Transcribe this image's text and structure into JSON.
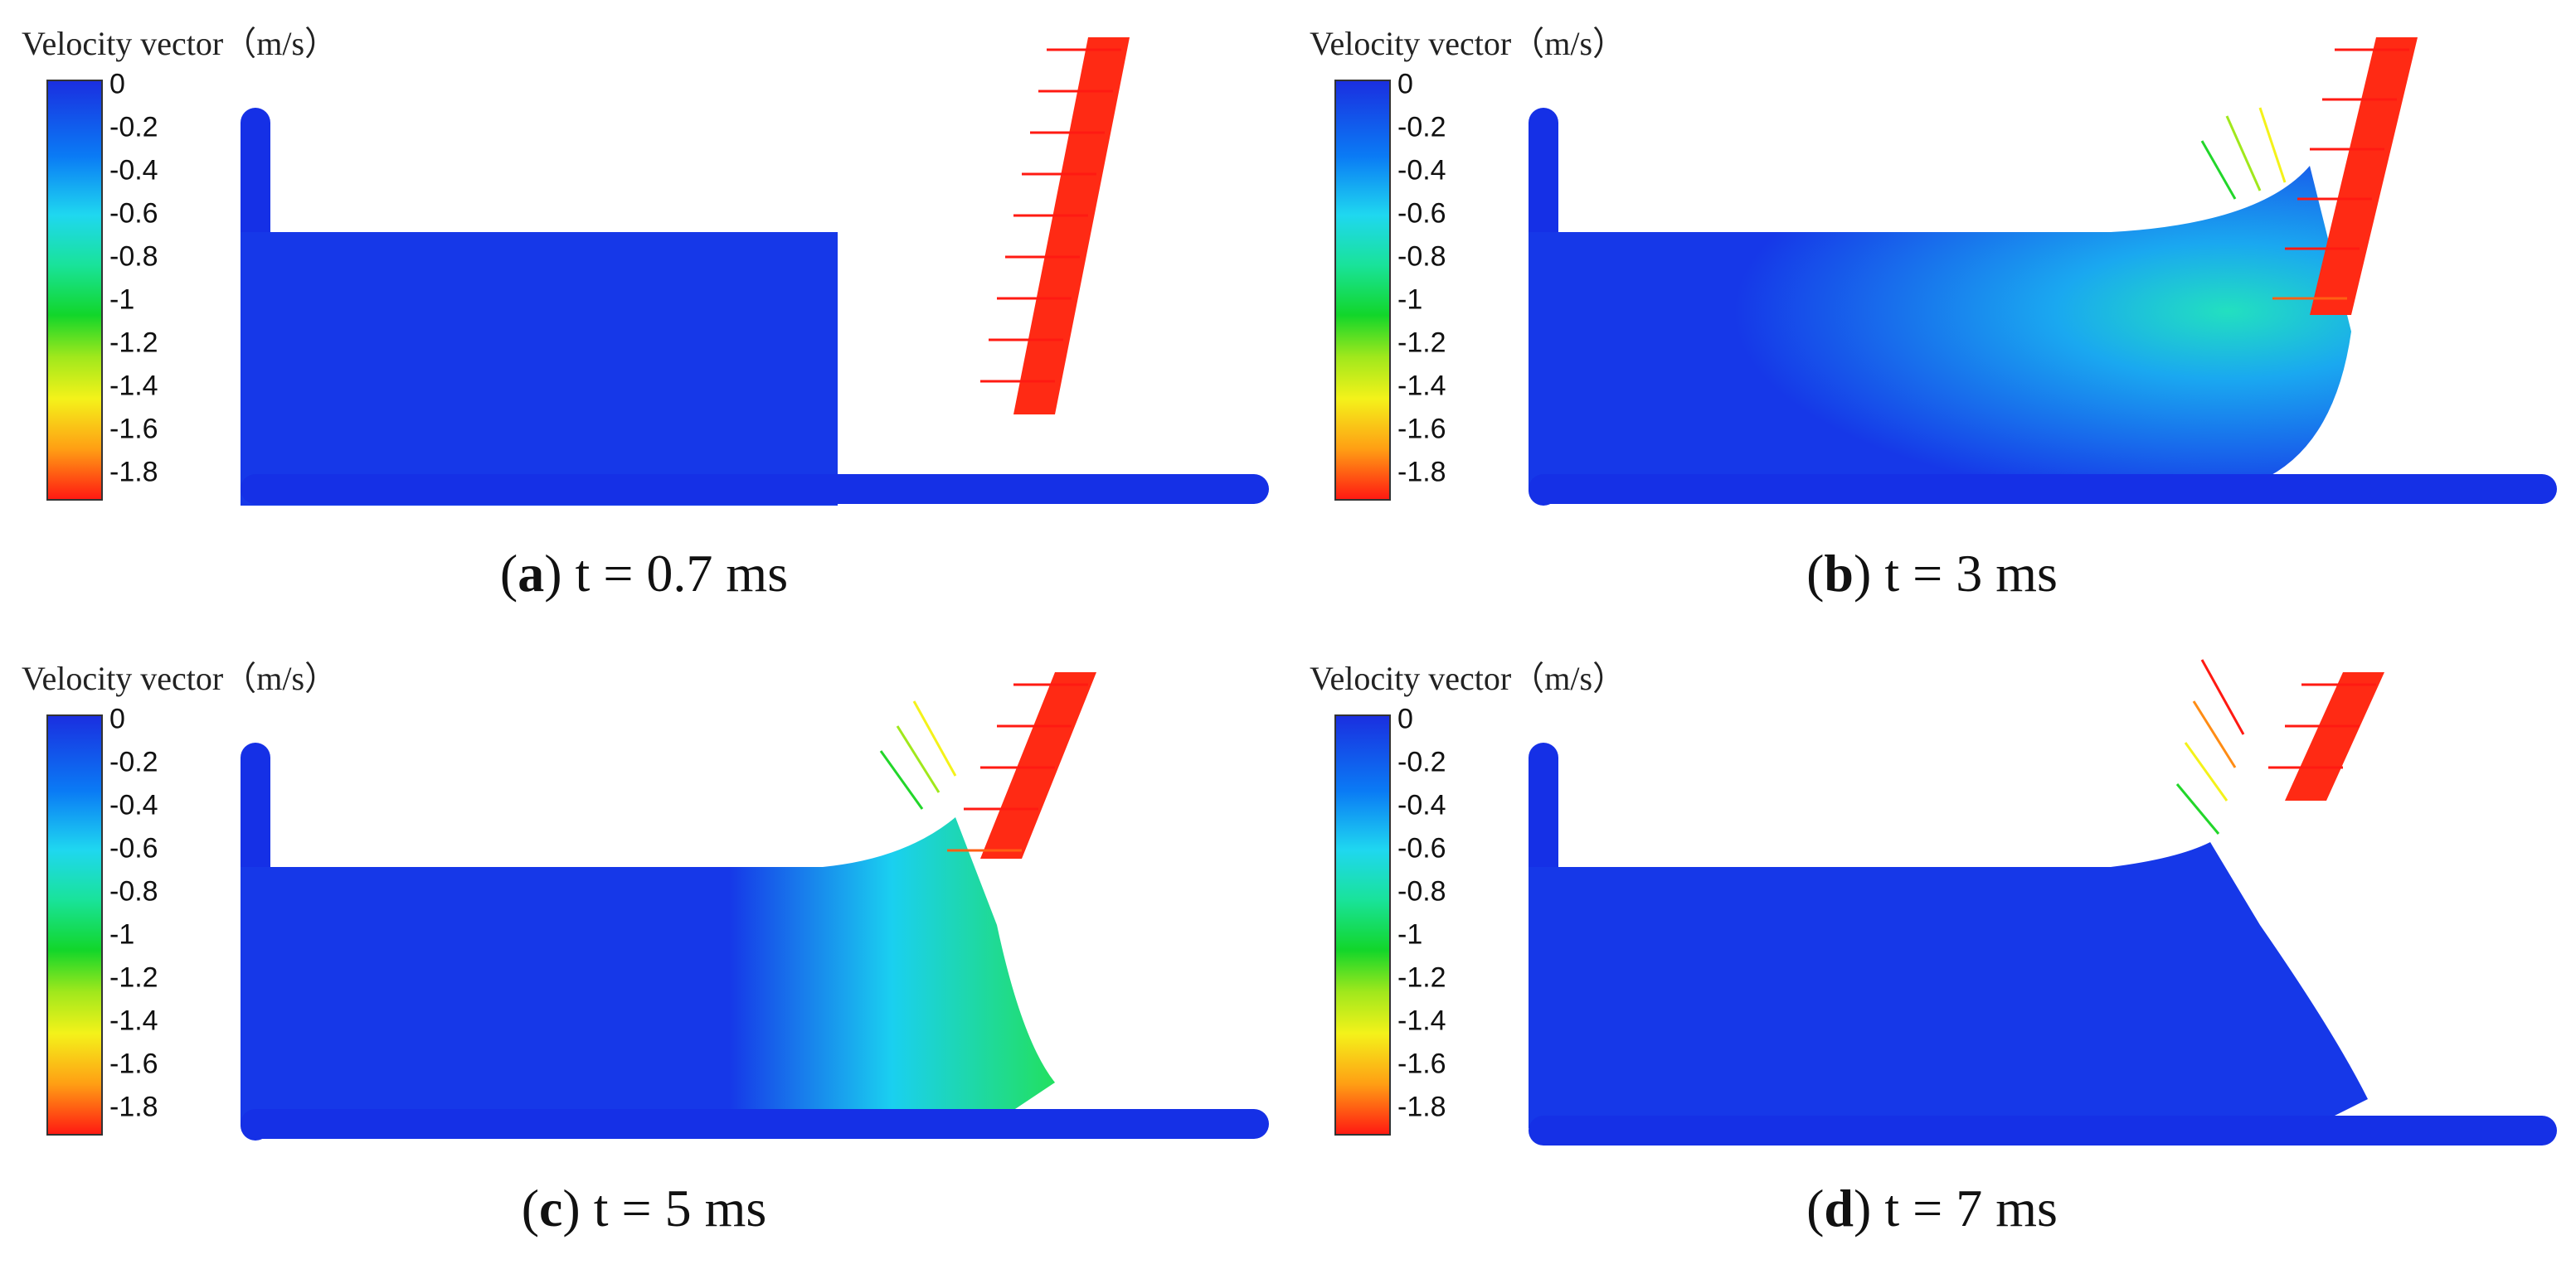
{
  "colorbar": {
    "title": "Velocity vector（m/s）",
    "ticks": [
      "0",
      "-0.2",
      "-0.4",
      "-0.6",
      "-0.8",
      "-1",
      "-1.2",
      "-1.4",
      "-1.6",
      "-1.8"
    ]
  },
  "colors": {
    "blue": "#1530e6",
    "cyan": "#1ed8f0",
    "green": "#22d62a",
    "yellow": "#f4f21a",
    "orange": "#ff8c14",
    "red": "#ff1a12"
  },
  "panels": [
    {
      "label": "a",
      "time": "t = 0.7 ms"
    },
    {
      "label": "b",
      "time": "t = 3 ms"
    },
    {
      "label": "c",
      "time": "t = 5 ms"
    },
    {
      "label": "d",
      "time": "t = 7 ms"
    }
  ]
}
